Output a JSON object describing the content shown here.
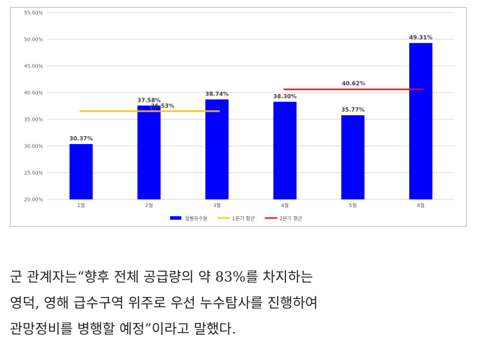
{
  "chart_data": {
    "type": "bar",
    "categories": [
      "1월",
      "2월",
      "3월",
      "4월",
      "5월",
      "6월"
    ],
    "series": [
      {
        "name": "월별유수율",
        "values": [
          30.37,
          37.58,
          38.74,
          38.3,
          35.77,
          49.31
        ],
        "color": "#0000ff"
      }
    ],
    "value_labels": [
      "30.37%",
      "37.58%",
      "38.74%",
      "38.30%",
      "35.77%",
      "49.31%"
    ],
    "averages": [
      {
        "name": "1분기 평균",
        "value": 36.53,
        "label": "36.53%",
        "from": "1월",
        "to": "3월",
        "color": "#ffc000"
      },
      {
        "name": "2분기 평균",
        "value": 40.62,
        "label": "40.62%",
        "from": "4월",
        "to": "6월",
        "color": "#ff0000"
      }
    ],
    "ylim": [
      20,
      55
    ],
    "yticks": [
      "20.00%",
      "25.00%",
      "30.00%",
      "35.00%",
      "40.00%",
      "45.00%",
      "50.00%",
      "55.00%"
    ],
    "grid": true,
    "legend_position": "bottom"
  },
  "caption": {
    "text": "군 관계자는“향후 전체 공급량의 약 83%를 차지하는\n영덕, 영해 급수구역 위주로 우선 누수탐사를 진행하여\n관망정비를 병행할 예정”이라고 말했다."
  }
}
